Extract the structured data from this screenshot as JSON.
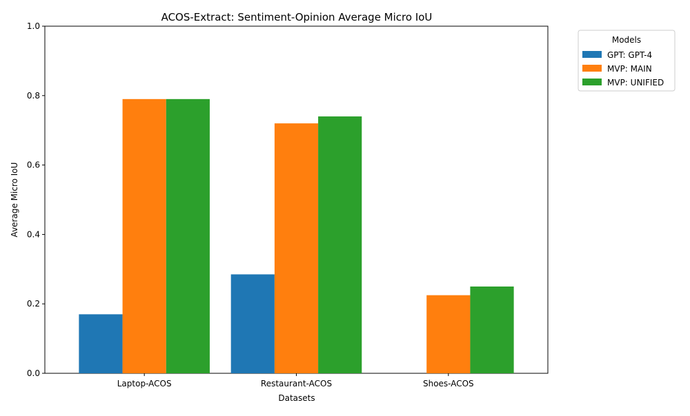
{
  "chart_data": {
    "type": "bar",
    "title": "ACOS-Extract: Sentiment-Opinion Average Micro IoU",
    "xlabel": "Datasets",
    "ylabel": "Average Micro IoU",
    "categories": [
      "Laptop-ACOS",
      "Restaurant-ACOS",
      "Shoes-ACOS"
    ],
    "ylim": [
      0,
      1.0
    ],
    "yticks": [
      "0.0",
      "0.2",
      "0.4",
      "0.6",
      "0.8",
      "1.0"
    ],
    "grid": false,
    "legend": {
      "title": "Models",
      "placement": "outside-top-right"
    },
    "series": [
      {
        "name": "GPT: GPT-4",
        "color": "#1f77b4",
        "values": [
          0.17,
          0.285,
          null
        ]
      },
      {
        "name": "MVP: MAIN",
        "color": "#ff7f0e",
        "values": [
          0.79,
          0.72,
          0.225
        ]
      },
      {
        "name": "MVP: UNIFIED",
        "color": "#2ca02c",
        "values": [
          0.79,
          0.74,
          0.25
        ]
      }
    ]
  }
}
